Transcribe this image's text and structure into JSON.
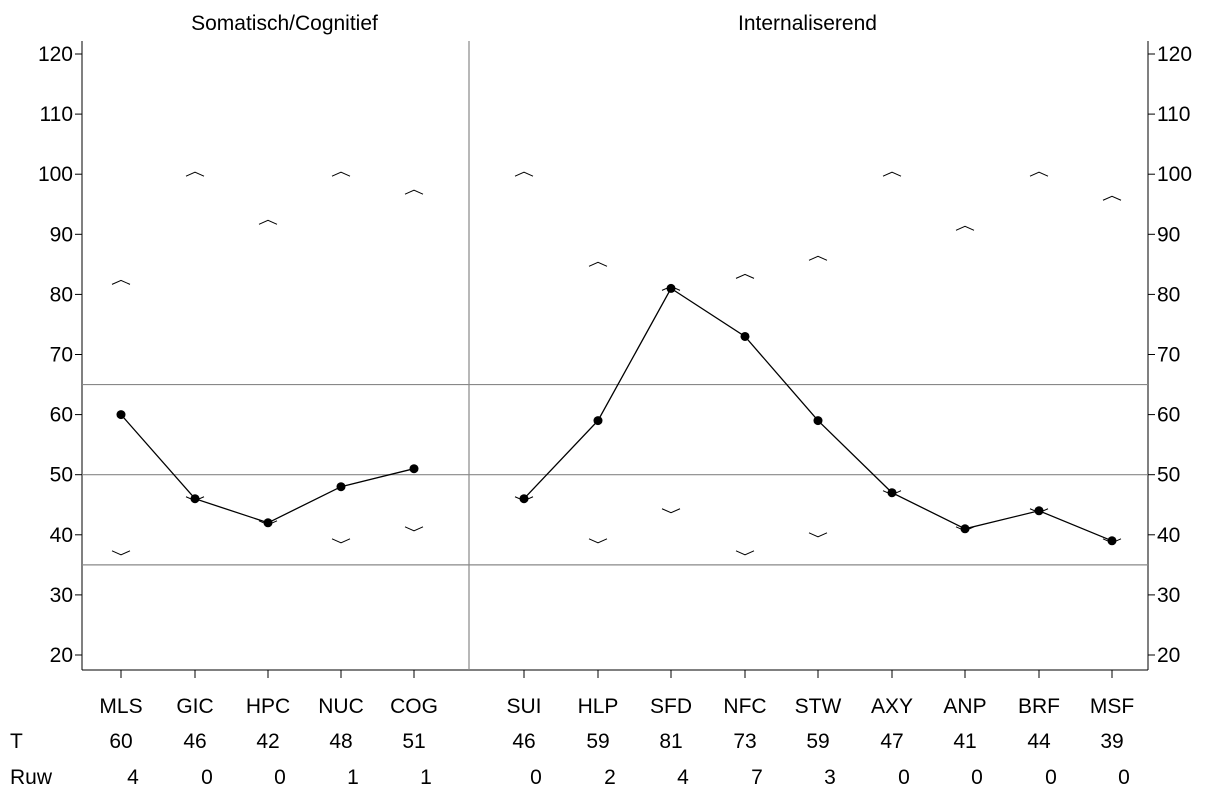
{
  "chart_data": {
    "type": "line",
    "ylim": [
      20,
      120
    ],
    "yticks": [
      20,
      30,
      40,
      50,
      60,
      70,
      80,
      90,
      100,
      110,
      120
    ],
    "reference_lines": [
      35,
      50,
      65
    ],
    "grid": false,
    "panels": [
      {
        "title": "Somatisch/Cognitief",
        "categories": [
          "MLS",
          "GIC",
          "HPC",
          "NUC",
          "COG"
        ],
        "values": [
          60,
          46,
          42,
          48,
          51
        ],
        "raw": [
          "4",
          "0",
          "0",
          "1",
          "1"
        ],
        "upper_bounds": [
          82,
          100,
          92,
          100,
          97
        ],
        "lower_bounds": [
          37,
          46,
          42,
          39,
          41
        ]
      },
      {
        "title": "Internaliserend",
        "categories": [
          "SUI",
          "HLP",
          "SFD",
          "NFC",
          "STW",
          "AXY",
          "ANP",
          "BRF",
          "MSF"
        ],
        "values": [
          46,
          59,
          81,
          73,
          59,
          47,
          41,
          44,
          39
        ],
        "raw": [
          "0",
          "2",
          "4",
          "7",
          "3",
          "0",
          "0",
          "0",
          "0"
        ],
        "upper_bounds": [
          100,
          85,
          81,
          83,
          86,
          100,
          91,
          100,
          96
        ],
        "lower_bounds": [
          46,
          39,
          44,
          37,
          40,
          47,
          41,
          44,
          39
        ]
      }
    ],
    "table": {
      "row_labels": [
        "T",
        "Ruw"
      ]
    },
    "colors": {
      "line": "#000000",
      "reference": "#888888",
      "frame": "#000000"
    }
  }
}
